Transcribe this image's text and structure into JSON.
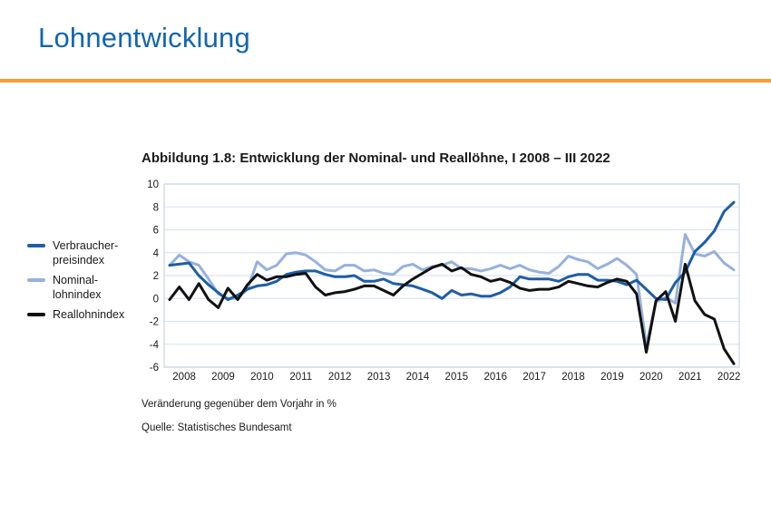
{
  "page": {
    "title": "Lohnentwicklung"
  },
  "theme": {
    "header_blue": "#1366AE",
    "rule_orange": "#F89B35",
    "grid_color": "#DCE4F3",
    "frame_color": "#C7D4E9",
    "text_color": "#1A1A1A"
  },
  "figure": {
    "title": "Abbildung 1.8: Entwicklung der Nominal- und Reallöhne, I 2008 – III 2022"
  },
  "legend": {
    "items": [
      {
        "line1": "Verbraucher-",
        "line2": "preisindex",
        "color": "#1E5EA6"
      },
      {
        "line1": "Nominal-",
        "line2": "lohnindex",
        "color": "#96B1DC"
      },
      {
        "line1": "Reallohnindex",
        "line2": "",
        "color": "#111111"
      }
    ]
  },
  "chart_data": {
    "type": "line",
    "title": "Abbildung 1.8: Entwicklung der Nominal- und Reallöhne, I 2008 – III 2022",
    "unit_note": "Veränderung gegenüber dem Vorjahr in %",
    "source": "Quelle: Statistisches Bundesamt",
    "frequency": "quarterly",
    "x_start": "I 2008",
    "x_end": "III 2022",
    "x_years": [
      "2008",
      "2009",
      "2010",
      "2011",
      "2012",
      "2013",
      "2014",
      "2015",
      "2016",
      "2017",
      "2018",
      "2019",
      "2020",
      "2021",
      "2022"
    ],
    "y_ticks": [
      10,
      8,
      6,
      4,
      2,
      0,
      -2,
      -4,
      -6
    ],
    "ylim": [
      -6,
      10
    ],
    "grid": true,
    "legend_position": "left",
    "series": [
      {
        "name": "Verbraucherpreisindex",
        "color": "#1E5EA6",
        "values": [
          2.9,
          3.0,
          3.1,
          2.0,
          1.2,
          0.5,
          -0.1,
          0.3,
          0.8,
          1.1,
          1.2,
          1.5,
          2.1,
          2.3,
          2.4,
          2.4,
          2.1,
          1.9,
          1.9,
          2.0,
          1.5,
          1.5,
          1.7,
          1.3,
          1.2,
          1.1,
          0.8,
          0.5,
          0.0,
          0.7,
          0.3,
          0.4,
          0.2,
          0.2,
          0.5,
          1.0,
          1.9,
          1.7,
          1.7,
          1.7,
          1.5,
          1.9,
          2.1,
          2.1,
          1.6,
          1.6,
          1.5,
          1.2,
          1.6,
          0.8,
          0.0,
          -0.1,
          1.4,
          2.3,
          4.1,
          4.9,
          5.9,
          7.6,
          8.4
        ]
      },
      {
        "name": "Nominallohnindex",
        "color": "#96B1DC",
        "values": [
          2.9,
          3.8,
          3.2,
          2.9,
          1.7,
          0.4,
          0.0,
          0.0,
          0.8,
          3.2,
          2.5,
          2.9,
          3.9,
          4.0,
          3.8,
          3.2,
          2.5,
          2.4,
          2.9,
          2.9,
          2.4,
          2.5,
          2.2,
          2.1,
          2.8,
          3.0,
          2.5,
          2.8,
          2.9,
          3.2,
          2.6,
          2.6,
          2.4,
          2.6,
          2.9,
          2.6,
          2.9,
          2.5,
          2.3,
          2.2,
          2.8,
          3.7,
          3.4,
          3.2,
          2.6,
          3.0,
          3.5,
          2.9,
          2.1,
          -4.1,
          -0.3,
          0.1,
          -0.4,
          5.6,
          3.9,
          3.7,
          4.1,
          3.1,
          2.5
        ]
      },
      {
        "name": "Reallohnindex",
        "color": "#111111",
        "values": [
          -0.1,
          1.0,
          -0.1,
          1.3,
          -0.1,
          -0.8,
          0.9,
          -0.1,
          1.2,
          2.1,
          1.6,
          1.9,
          1.9,
          2.1,
          2.2,
          1.0,
          0.3,
          0.5,
          0.6,
          0.8,
          1.1,
          1.1,
          0.7,
          0.3,
          1.1,
          1.7,
          2.2,
          2.7,
          3.0,
          2.4,
          2.7,
          2.1,
          1.9,
          1.5,
          1.7,
          1.4,
          0.9,
          0.7,
          0.8,
          0.8,
          1.0,
          1.5,
          1.3,
          1.1,
          1.0,
          1.4,
          1.7,
          1.5,
          0.4,
          -4.7,
          -0.2,
          0.6,
          -2.0,
          3.0,
          -0.2,
          -1.4,
          -1.8,
          -4.4,
          -5.7
        ]
      }
    ],
    "draw_order": [
      1,
      0,
      2
    ]
  }
}
